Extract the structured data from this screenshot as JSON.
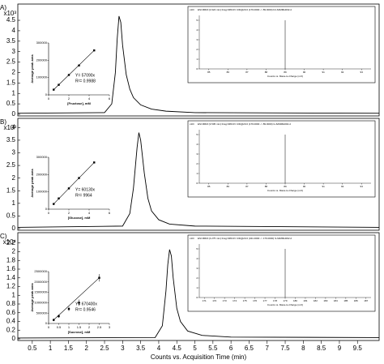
{
  "chart_data": {
    "type": "panels",
    "xlabel": "Counts vs. Acquisition Time (min)",
    "xlim": [
      0.1,
      10.1
    ],
    "xticks": [
      0.5,
      1,
      1.5,
      2,
      2.5,
      3,
      3.5,
      4,
      4.5,
      5,
      5.5,
      6,
      6.5,
      7,
      7.5,
      8,
      8.5,
      9,
      9.5
    ],
    "color": "#000000",
    "panels": [
      {
        "type": "line",
        "label": "A)",
        "multiplier": "x10³",
        "ylim": [
          0,
          5.2
        ],
        "yticks": [
          0,
          0.5,
          1,
          1.5,
          2,
          2.5,
          3,
          3.5,
          4,
          4.5
        ],
        "x": [
          0.1,
          2.5,
          2.7,
          2.8,
          2.85,
          2.9,
          2.95,
          3.0,
          3.1,
          3.2,
          3.3,
          3.5,
          3.8,
          4.2,
          5,
          10.1
        ],
        "values": [
          0.05,
          0.08,
          0.5,
          2.0,
          3.6,
          4.7,
          4.4,
          3.3,
          1.9,
          1.2,
          0.8,
          0.45,
          0.25,
          0.15,
          0.08,
          0.05
        ],
        "calibration": {
          "type": "scatter",
          "xlabel": "[Fructose], mM",
          "ylabel": "Average peak area",
          "equation": "Y= 57090x",
          "r2": "R²= 0.9988",
          "xlim": [
            0,
            6
          ],
          "xticks": [
            0,
            2,
            4,
            6
          ],
          "ylim": [
            0,
            300000
          ],
          "yticks": [
            0,
            100000,
            200000,
            300000
          ],
          "x": [
            0.5,
            1,
            2,
            3,
            4.5
          ],
          "values": [
            30000,
            58000,
            115000,
            170000,
            257000
          ]
        },
        "spectrum": {
          "type": "stick",
          "title": "ESI MRM (2.924 min) Frag=380.0V CID@20.0 (179.0000 -> 89.0000) F2-62MMH002.d",
          "multiplier": "x10¹",
          "xlabel": "Counts vs. Mass-to-Charge (m/z)",
          "xlim": [
            84.5,
            93.5
          ],
          "xticks": [
            85,
            86,
            87,
            88,
            89,
            90,
            91,
            92,
            93
          ],
          "ylim": [
            0,
            5.5
          ],
          "yticks": [
            0,
            1,
            2,
            3,
            4,
            5
          ],
          "x": [
            89
          ],
          "values": [
            5
          ]
        }
      },
      {
        "type": "line",
        "label": "B)",
        "multiplier": "x10³",
        "ylim": [
          0,
          4.3
        ],
        "yticks": [
          0,
          0.5,
          1,
          1.5,
          2,
          2.5,
          3,
          3.5,
          4
        ],
        "x": [
          0.1,
          3.0,
          3.2,
          3.3,
          3.4,
          3.45,
          3.5,
          3.6,
          3.7,
          3.8,
          4.0,
          4.3,
          5,
          10.1
        ],
        "values": [
          0.05,
          0.1,
          0.6,
          1.6,
          3.2,
          3.8,
          3.5,
          2.2,
          1.2,
          0.7,
          0.35,
          0.18,
          0.1,
          0.05
        ],
        "calibration": {
          "type": "scatter",
          "xlabel": "[Glucose], mM",
          "ylabel": "Average peak area",
          "equation": "Y= 60130x",
          "r2": "R²= 9964",
          "xlim": [
            0,
            6
          ],
          "xticks": [
            0,
            2,
            4,
            6
          ],
          "ylim": [
            0,
            300000
          ],
          "yticks": [
            0,
            100000,
            200000,
            300000
          ],
          "x": [
            0.5,
            1,
            2,
            3,
            4.5
          ],
          "values": [
            30000,
            62000,
            120000,
            180000,
            270000
          ]
        },
        "spectrum": {
          "type": "stick",
          "title": "ESI MRM (3.505 min) Frag=380.0V CID@20.0 (179.0000 -> 89.0000) G-62MMH002.d",
          "multiplier": "x10¹",
          "xlabel": "Counts vs. Mass-to-Charge (m/z)",
          "xlim": [
            84.5,
            93.5
          ],
          "xticks": [
            85,
            86,
            87,
            88,
            89,
            90,
            91,
            92,
            93
          ],
          "ylim": [
            0,
            5.5
          ],
          "yticks": [
            0,
            1,
            2,
            3,
            4,
            5
          ],
          "x": [
            89
          ],
          "values": [
            5
          ]
        }
      },
      {
        "type": "line",
        "label": "C)",
        "multiplier": "x10⁴",
        "ylim": [
          0,
          2.4
        ],
        "yticks": [
          0,
          0.2,
          0.4,
          0.6,
          0.8,
          1,
          1.2,
          1.4,
          1.6,
          1.8,
          2,
          2.2
        ],
        "x": [
          0.1,
          3.9,
          4.1,
          4.2,
          4.25,
          4.3,
          4.35,
          4.4,
          4.5,
          4.6,
          4.8,
          5.2,
          6,
          10.1
        ],
        "values": [
          0.02,
          0.03,
          0.3,
          1.1,
          1.7,
          2.05,
          1.9,
          1.4,
          0.7,
          0.4,
          0.18,
          0.08,
          0.04,
          0.03
        ],
        "calibration": {
          "type": "scatter",
          "xlabel": "[Sucrose], mM",
          "ylabel": "Average peak area",
          "equation": "Y= 670400x",
          "r2": "R²= 0.9546",
          "xlim": [
            0,
            3
          ],
          "xticks": [
            0,
            0.5,
            1,
            1.5,
            2,
            2.5,
            3
          ],
          "ylim": [
            0,
            2500000
          ],
          "yticks": [
            0,
            500000,
            1000000,
            1500000,
            2000000,
            2500000
          ],
          "x": [
            0.25,
            0.5,
            1,
            1.5,
            2.5
          ],
          "values": [
            170000,
            350000,
            700000,
            1000000,
            2200000
          ],
          "errors": [
            60000,
            80000,
            100000,
            150000,
            180000
          ]
        },
        "spectrum": {
          "type": "stick",
          "title": "ESI MRM (4.275 min) Frag=380.0V CID@20.0 (341.0000 -> 179.0000) S-62MMH002.d",
          "multiplier": "x10¹",
          "xlabel": "Counts vs. Mass-to-Charge (m/z)",
          "xlim": [
            170.5,
            187.5
          ],
          "xticks": [
            171,
            172,
            173,
            174,
            175,
            176,
            177,
            178,
            179,
            180,
            181,
            182,
            183,
            184,
            185,
            186,
            187
          ],
          "ylim": [
            0,
            5.5
          ],
          "yticks": [
            0,
            1,
            2,
            3,
            4,
            5
          ],
          "x": [
            179
          ],
          "values": [
            5
          ]
        }
      }
    ]
  }
}
